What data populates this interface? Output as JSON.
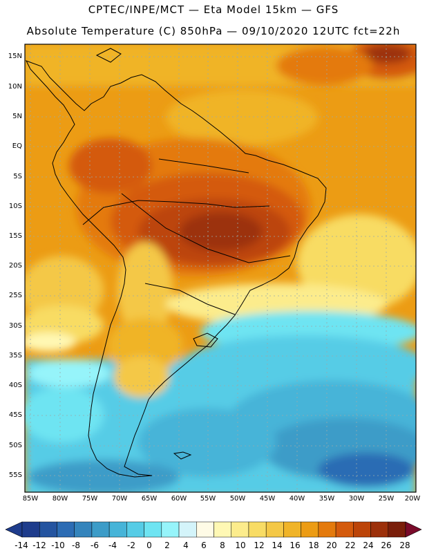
{
  "header": {
    "line1": "CPTEC/INPE/MCT —  Eta Model 15km — GFS",
    "line2": "Absolute Temperature (C) 850hPa — 09/10/2020 12UTC fct=22h"
  },
  "axes": {
    "lat_labels": [
      "15N",
      "10N",
      "5N",
      "EQ",
      "5S",
      "10S",
      "15S",
      "20S",
      "25S",
      "30S",
      "35S",
      "40S",
      "45S",
      "50S",
      "55S"
    ],
    "lon_labels": [
      "85W",
      "80W",
      "75W",
      "70W",
      "65W",
      "60W",
      "55W",
      "50W",
      "45W",
      "40W",
      "35W",
      "30W",
      "25W",
      "20W"
    ]
  },
  "colorbar": {
    "labels": [
      "-14",
      "-12",
      "-10",
      "-8",
      "-6",
      "-4",
      "-2",
      "0",
      "2",
      "4",
      "6",
      "8",
      "10",
      "12",
      "14",
      "16",
      "18",
      "20",
      "22",
      "24",
      "26",
      "28"
    ],
    "colors": [
      "#1e3c8c",
      "#2454a0",
      "#2c6cb4",
      "#3484bc",
      "#3c9cc8",
      "#46b4d8",
      "#56cce6",
      "#6ee4f2",
      "#96f4fa",
      "#d4f4fa",
      "#fffbe6",
      "#fff8b4",
      "#fcec8c",
      "#f8dc64",
      "#f4c846",
      "#f0b428",
      "#ec9c14",
      "#e47a0c",
      "#d45a0c",
      "#bc4408",
      "#9c300a",
      "#7a1e0a"
    ],
    "under_color": "#1e3c8c",
    "over_color": "#7a0a2a"
  }
}
